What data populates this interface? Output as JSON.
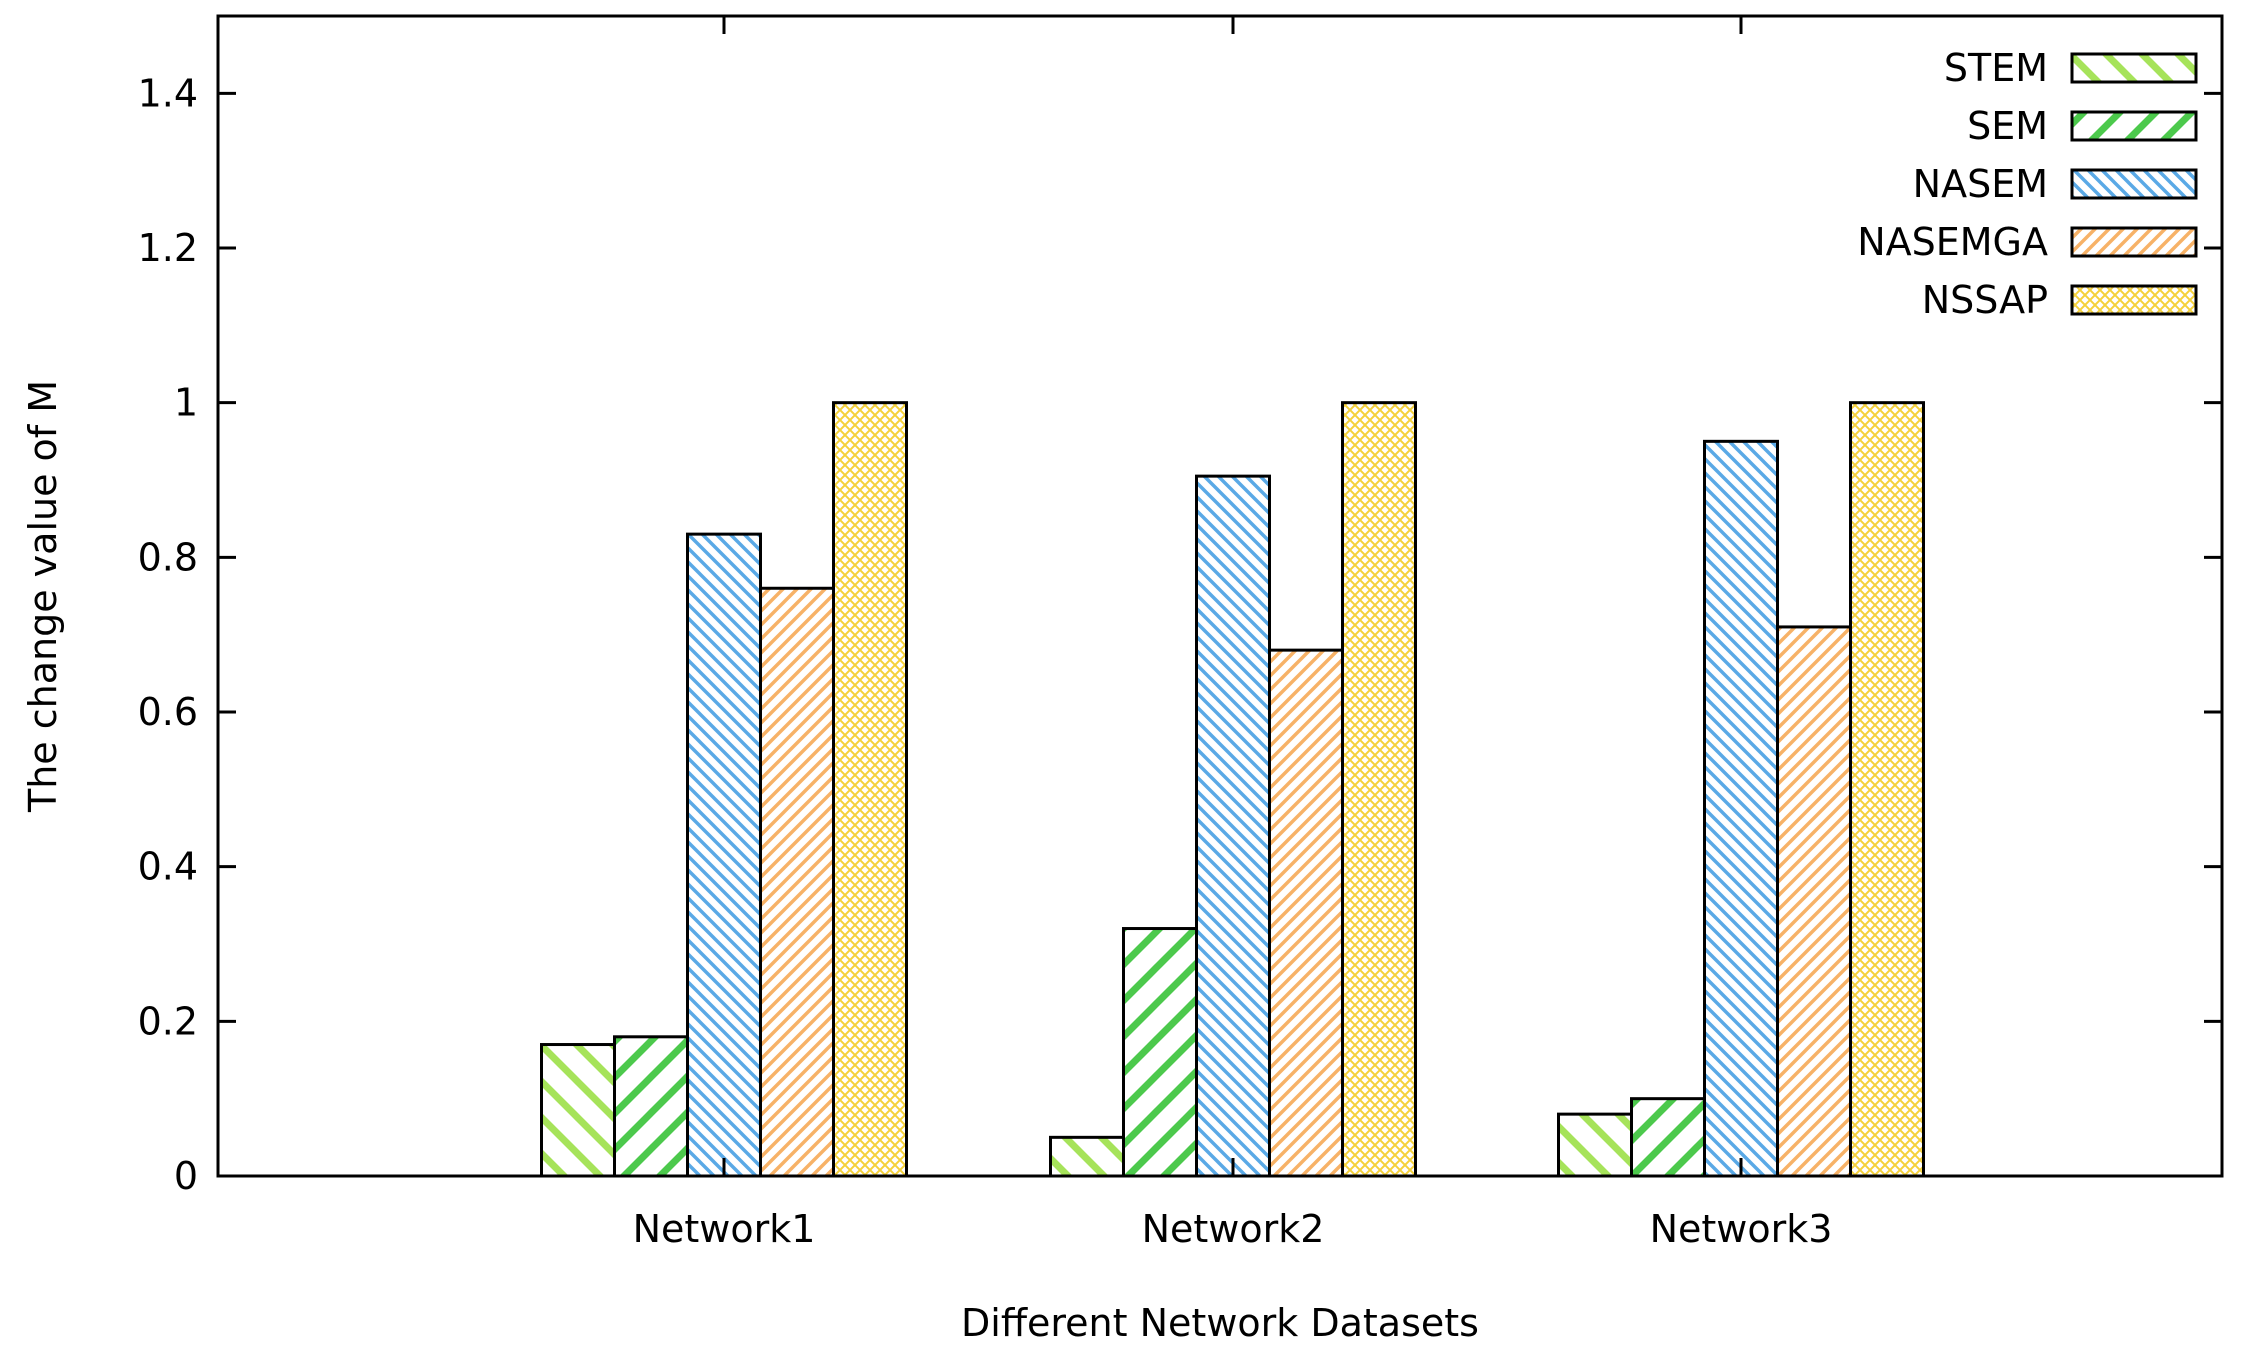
{
  "chart_data": {
    "type": "bar",
    "title": "",
    "xlabel": "Different Network Datasets",
    "ylabel": "The change value of M",
    "ylim": [
      0,
      1.5
    ],
    "yticks": [
      0,
      0.2,
      0.4,
      0.6,
      0.8,
      1,
      1.2,
      1.4
    ],
    "ytick_labels": [
      "0",
      "0.2",
      "0.4",
      "0.6",
      "0.8",
      "1",
      "1.2",
      "1.4"
    ],
    "categories": [
      "Network1",
      "Network2",
      "Network3"
    ],
    "legend_position": "top-right",
    "grid": false,
    "series": [
      {
        "name": "STEM",
        "values": [
          0.17,
          0.05,
          0.08
        ],
        "color": "#a6e35a",
        "pattern": "diag-wide-light"
      },
      {
        "name": "SEM",
        "values": [
          0.18,
          0.32,
          0.1
        ],
        "color": "#4cc94c",
        "pattern": "diag-wide"
      },
      {
        "name": "NASEM",
        "values": [
          0.83,
          0.905,
          0.95
        ],
        "color": "#5aa9e6",
        "pattern": "diag-dense"
      },
      {
        "name": "NASEMGA",
        "values": [
          0.76,
          0.68,
          0.71
        ],
        "color": "#f7b267",
        "pattern": "diag-dense-rev"
      },
      {
        "name": "NSSAP",
        "values": [
          1.0,
          1.0,
          1.0
        ],
        "color": "#f5d13b",
        "pattern": "crosshatch"
      }
    ]
  }
}
